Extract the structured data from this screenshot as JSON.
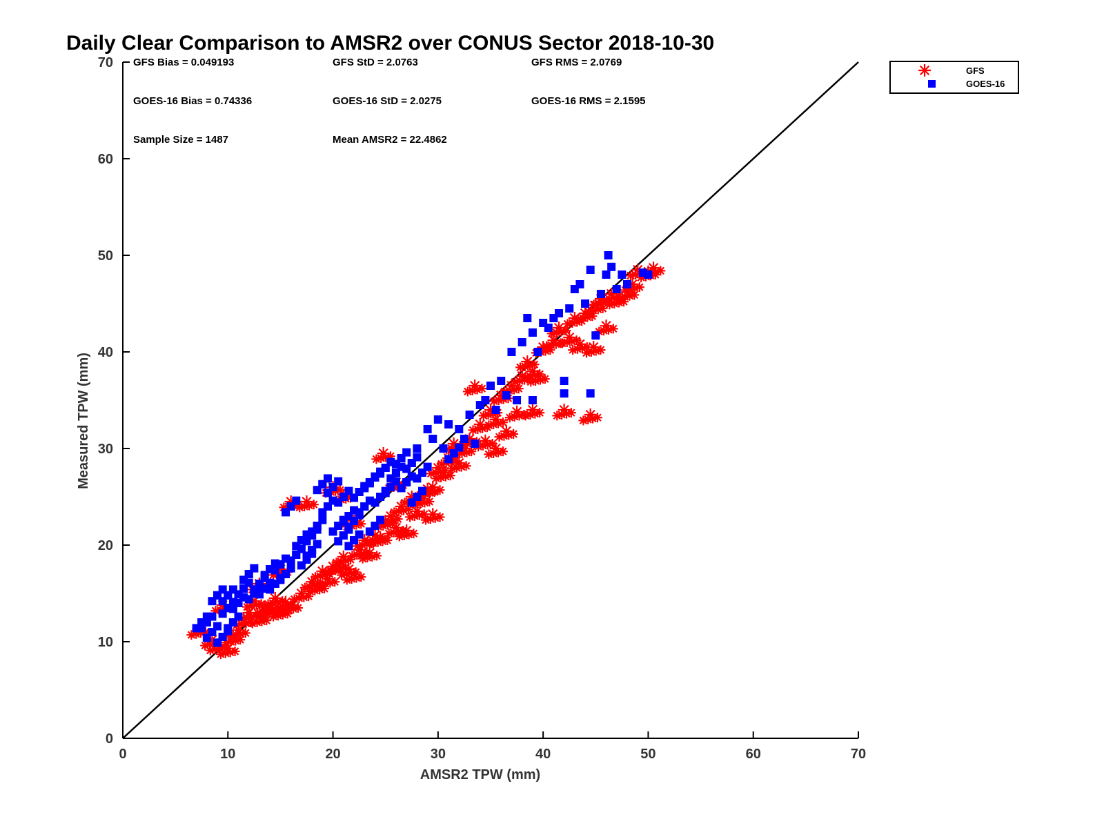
{
  "chart_data": {
    "type": "scatter",
    "title": "Daily Clear Comparison to AMSR2 over CONUS Sector 2018-10-30",
    "xlabel": "AMSR2 TPW (mm)",
    "ylabel": "Measured TPW (mm)",
    "xlim": [
      0,
      70
    ],
    "ylim": [
      0,
      70
    ],
    "xticks": [
      "0",
      "10",
      "20",
      "30",
      "40",
      "50",
      "60",
      "70"
    ],
    "yticks": [
      "0",
      "10",
      "20",
      "30",
      "40",
      "50",
      "60",
      "70"
    ],
    "reference_line": "y = x",
    "legend_position": "top-right outside",
    "stats": [
      [
        "GFS Bias = 0.049193",
        "GFS StD = 2.0763",
        "GFS RMS = 2.0769"
      ],
      [
        "GOES-16 Bias = 0.74336",
        "GOES-16 StD = 2.0275",
        "GOES-16 RMS = 2.1595"
      ],
      [
        "Sample Size = 1487",
        "Mean AMSR2 = 22.4862"
      ]
    ],
    "series": [
      {
        "name": "GFS",
        "marker": "asterisk",
        "color": "#ff0000",
        "points": [
          [
            7.2,
            11.3
          ],
          [
            8.5,
            10.2
          ],
          [
            9.0,
            9.7
          ],
          [
            9.5,
            13.8
          ],
          [
            10.0,
            9.3
          ],
          [
            10.5,
            10.5
          ],
          [
            11.0,
            11.2
          ],
          [
            11.5,
            12.3
          ],
          [
            12.0,
            13.0
          ],
          [
            12.5,
            14.2
          ],
          [
            13.0,
            12.5
          ],
          [
            13.5,
            13.6
          ],
          [
            14.0,
            13.4
          ],
          [
            14.5,
            14.5
          ],
          [
            15.0,
            13.2
          ],
          [
            15.5,
            14.1
          ],
          [
            16.0,
            13.8
          ],
          [
            16.0,
            24.5
          ],
          [
            17.0,
            15.0
          ],
          [
            17.5,
            24.5
          ],
          [
            18.0,
            16.2
          ],
          [
            18.5,
            15.8
          ],
          [
            19.0,
            17.3
          ],
          [
            19.5,
            16.5
          ],
          [
            20.0,
            17.8
          ],
          [
            20.5,
            18.0
          ],
          [
            21.0,
            18.8
          ],
          [
            21.5,
            17.5
          ],
          [
            22.0,
            17.0
          ],
          [
            22.5,
            19.5
          ],
          [
            23.0,
            20.5
          ],
          [
            23.5,
            19.2
          ],
          [
            24.0,
            21.0
          ],
          [
            24.5,
            20.8
          ],
          [
            24.8,
            29.5
          ],
          [
            25.0,
            22.5
          ],
          [
            25.5,
            23.0
          ],
          [
            26.0,
            21.8
          ],
          [
            26.5,
            24.0
          ],
          [
            27.0,
            21.5
          ],
          [
            27.5,
            25.0
          ],
          [
            28.0,
            23.5
          ],
          [
            28.5,
            24.8
          ],
          [
            29.0,
            25.8
          ],
          [
            29.5,
            26.0
          ],
          [
            29.5,
            23.2
          ],
          [
            30.0,
            28.0
          ],
          [
            30.5,
            27.5
          ],
          [
            31.0,
            29.0
          ],
          [
            31.5,
            30.5
          ],
          [
            32.0,
            28.5
          ],
          [
            32.5,
            30.0
          ],
          [
            33.0,
            31.0
          ],
          [
            33.5,
            36.5
          ],
          [
            34.0,
            32.5
          ],
          [
            34.5,
            30.8
          ],
          [
            35.0,
            34.0
          ],
          [
            35.5,
            33.0
          ],
          [
            35.5,
            30.0
          ],
          [
            36.0,
            35.5
          ],
          [
            36.5,
            31.8
          ],
          [
            37.0,
            36.5
          ],
          [
            37.5,
            33.8
          ],
          [
            38.0,
            37.5
          ],
          [
            38.5,
            39.0
          ],
          [
            39.0,
            38.0
          ],
          [
            39.0,
            34.0
          ],
          [
            39.5,
            37.5
          ],
          [
            40.0,
            40.5
          ],
          [
            41.0,
            41.2
          ],
          [
            41.5,
            42.5
          ],
          [
            42.0,
            34.0
          ],
          [
            42.5,
            41.5
          ],
          [
            43.0,
            43.5
          ],
          [
            43.5,
            40.8
          ],
          [
            44.0,
            44.0
          ],
          [
            44.5,
            33.5
          ],
          [
            44.8,
            40.5
          ],
          [
            45.0,
            44.8
          ],
          [
            45.5,
            45.5
          ],
          [
            46.0,
            42.7
          ],
          [
            46.5,
            46.0
          ],
          [
            47.0,
            45.5
          ],
          [
            48.0,
            46.2
          ],
          [
            48.5,
            47.0
          ],
          [
            49.0,
            48.5
          ],
          [
            50.0,
            48.3
          ],
          [
            50.5,
            48.7
          ],
          [
            20.0,
            26.0
          ],
          [
            21.0,
            25.2
          ],
          [
            13.0,
            16.0
          ],
          [
            15.0,
            17.5
          ],
          [
            22.0,
            22.5
          ],
          [
            26.0,
            26.5
          ]
        ]
      },
      {
        "name": "GOES-16",
        "marker": "square",
        "color": "#0000ff",
        "points": [
          [
            7.5,
            12.0
          ],
          [
            8.0,
            12.0
          ],
          [
            8.5,
            11.0
          ],
          [
            9.0,
            14.8
          ],
          [
            9.5,
            10.5
          ],
          [
            10.0,
            13.5
          ],
          [
            10.0,
            14.8
          ],
          [
            10.5,
            12.0
          ],
          [
            11.0,
            14.0
          ],
          [
            11.5,
            15.5
          ],
          [
            12.0,
            17.0
          ],
          [
            12.5,
            15.0
          ],
          [
            13.0,
            16.0
          ],
          [
            13.5,
            15.5
          ],
          [
            14.0,
            17.5
          ],
          [
            14.5,
            16.0
          ],
          [
            15.0,
            18.0
          ],
          [
            15.5,
            17.0
          ],
          [
            16.0,
            24.0
          ],
          [
            16.5,
            19.0
          ],
          [
            17.0,
            20.5
          ],
          [
            17.5,
            18.5
          ],
          [
            18.0,
            21.0
          ],
          [
            18.5,
            22.0
          ],
          [
            19.0,
            26.3
          ],
          [
            19.5,
            24.0
          ],
          [
            20.0,
            26.0
          ],
          [
            20.5,
            22.0
          ],
          [
            21.0,
            25.0
          ],
          [
            21.5,
            23.0
          ],
          [
            22.0,
            22.5
          ],
          [
            22.5,
            25.5
          ],
          [
            23.0,
            24.0
          ],
          [
            23.5,
            26.5
          ],
          [
            24.0,
            27.0
          ],
          [
            24.5,
            25.0
          ],
          [
            25.0,
            28.0
          ],
          [
            25.5,
            26.0
          ],
          [
            26.0,
            27.5
          ],
          [
            26.5,
            29.0
          ],
          [
            27.0,
            26.5
          ],
          [
            27.5,
            28.5
          ],
          [
            28.0,
            30.0
          ],
          [
            28.5,
            27.5
          ],
          [
            29.0,
            32.0
          ],
          [
            29.5,
            31.0
          ],
          [
            30.0,
            33.0
          ],
          [
            30.5,
            30.0
          ],
          [
            31.0,
            32.5
          ],
          [
            31.5,
            29.5
          ],
          [
            32.0,
            32.0
          ],
          [
            32.5,
            31.0
          ],
          [
            33.0,
            33.5
          ],
          [
            33.5,
            30.5
          ],
          [
            34.0,
            34.5
          ],
          [
            34.5,
            35.0
          ],
          [
            35.0,
            36.5
          ],
          [
            35.5,
            34.0
          ],
          [
            36.0,
            37.0
          ],
          [
            36.5,
            35.5
          ],
          [
            37.0,
            40.0
          ],
          [
            37.5,
            35.0
          ],
          [
            38.0,
            41.0
          ],
          [
            38.5,
            43.5
          ],
          [
            39.0,
            42.0
          ],
          [
            39.0,
            35.0
          ],
          [
            39.5,
            40.0
          ],
          [
            40.0,
            43.0
          ],
          [
            40.5,
            42.5
          ],
          [
            41.0,
            43.5
          ],
          [
            41.5,
            44.0
          ],
          [
            42.0,
            37.0
          ],
          [
            42.0,
            35.7
          ],
          [
            42.5,
            44.5
          ],
          [
            43.0,
            46.5
          ],
          [
            43.5,
            47.0
          ],
          [
            44.0,
            45.0
          ],
          [
            44.5,
            35.7
          ],
          [
            44.5,
            48.5
          ],
          [
            45.0,
            41.7
          ],
          [
            45.5,
            46.0
          ],
          [
            46.0,
            48.0
          ],
          [
            46.2,
            50.0
          ],
          [
            46.5,
            48.8
          ],
          [
            47.0,
            46.5
          ],
          [
            47.5,
            48.0
          ],
          [
            48.0,
            47.0
          ],
          [
            49.5,
            48.2
          ],
          [
            50.0,
            48.0
          ],
          [
            21.0,
            21.0
          ],
          [
            22.0,
            20.5
          ],
          [
            18.0,
            19.5
          ],
          [
            24.0,
            22.0
          ],
          [
            28.0,
            25.0
          ]
        ]
      }
    ]
  }
}
